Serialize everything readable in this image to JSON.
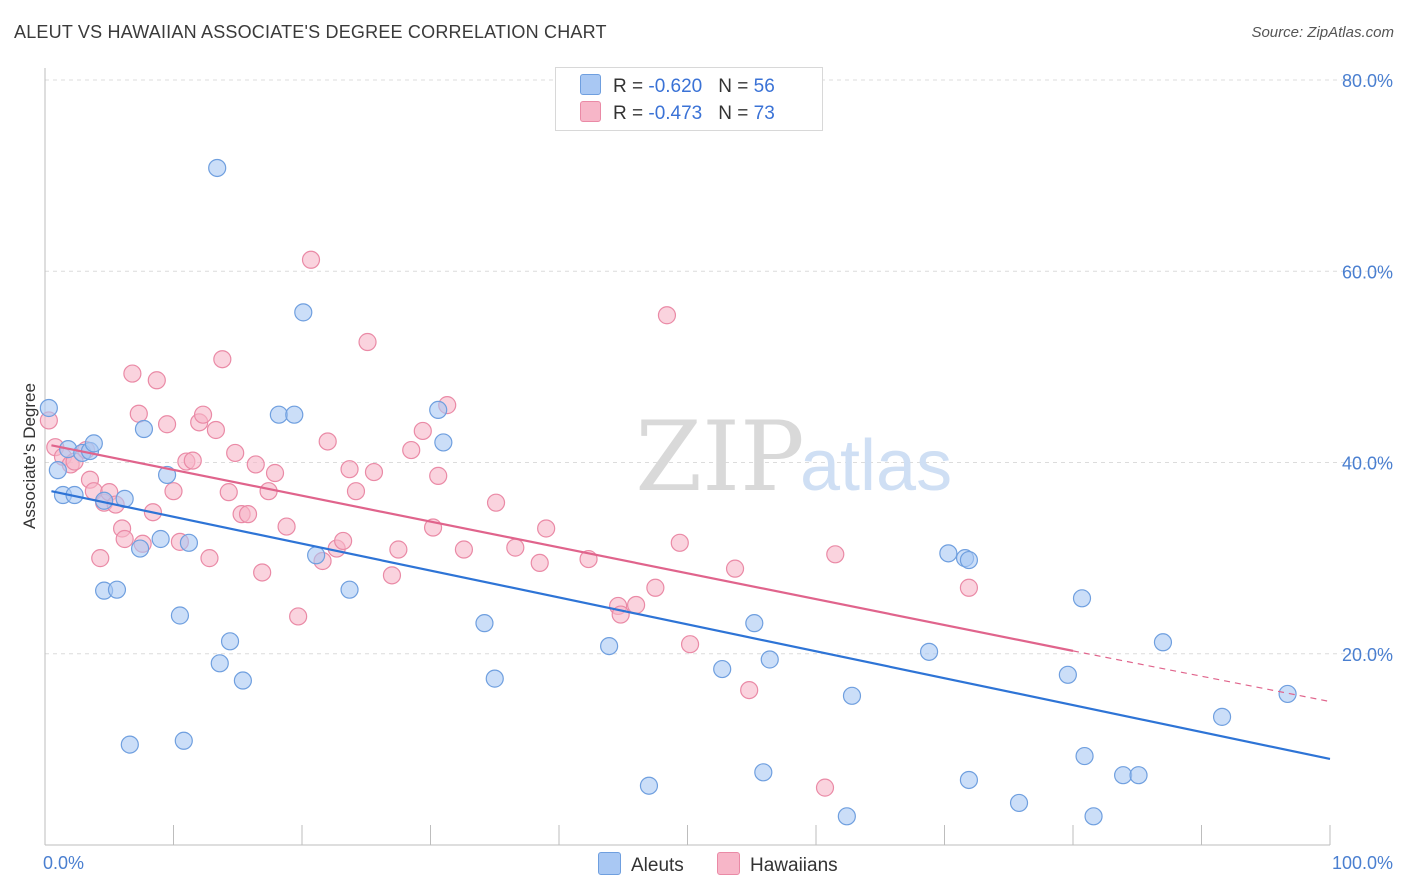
{
  "header": {
    "title": "ALEUT VS HAWAIIAN ASSOCIATE'S DEGREE CORRELATION CHART",
    "source": "Source: ZipAtlas.com"
  },
  "watermark": {
    "zip": "ZIP",
    "atlas": "atlas"
  },
  "legend": {
    "rows": [
      {
        "r_label": "R = ",
        "r_value": "-0.620",
        "n_label": "N = ",
        "n_value": "56",
        "color": "#a9c8f3"
      },
      {
        "r_label": "R = ",
        "r_value": "-0.473",
        "n_label": "N = ",
        "n_value": "73",
        "color": "#f7b6c8"
      }
    ]
  },
  "bottom_legend": {
    "aleuts": "Aleuts",
    "hawaiians": "Hawaiians"
  },
  "colors": {
    "aleut_fill": "#a9c8f3",
    "aleut_stroke": "#6f9fdf",
    "aleut_line": "#2e74d6",
    "hawaiian_fill": "#f7b6c8",
    "hawaiian_stroke": "#ea8aa6",
    "hawaiian_line": "#e0648c",
    "tick": "#4a7fd0",
    "grid": "#dcdcdc"
  },
  "chart_data": {
    "type": "scatter",
    "title": "ALEUT VS HAWAIIAN ASSOCIATE'S DEGREE CORRELATION CHART",
    "ylabel": "Associate's Degree",
    "xlabel": "",
    "xlim": [
      0,
      100
    ],
    "ylim": [
      0,
      80
    ],
    "x_ticks": [
      "0.0%",
      "100.0%"
    ],
    "y_ticks": [
      "20.0%",
      "40.0%",
      "60.0%",
      "80.0%"
    ],
    "y_tick_values": [
      20,
      40,
      60,
      80
    ],
    "grid": true,
    "legend_position": "top-center",
    "series": [
      {
        "name": "Aleuts",
        "r": -0.62,
        "n": 56,
        "trend": {
          "x": [
            0.5,
            100
          ],
          "y": [
            37.0,
            9.0
          ]
        },
        "points": [
          [
            0.3,
            45.7
          ],
          [
            1.0,
            39.2
          ],
          [
            1.4,
            36.6
          ],
          [
            1.8,
            41.4
          ],
          [
            2.3,
            36.6
          ],
          [
            2.9,
            41.0
          ],
          [
            3.5,
            41.2
          ],
          [
            3.8,
            42.0
          ],
          [
            4.6,
            36.0
          ],
          [
            4.6,
            26.6
          ],
          [
            5.6,
            26.7
          ],
          [
            6.2,
            36.2
          ],
          [
            6.6,
            10.5
          ],
          [
            7.4,
            31.0
          ],
          [
            7.7,
            43.5
          ],
          [
            9.0,
            32.0
          ],
          [
            9.5,
            38.7
          ],
          [
            10.5,
            24.0
          ],
          [
            10.8,
            10.9
          ],
          [
            11.2,
            31.6
          ],
          [
            13.4,
            70.8
          ],
          [
            13.6,
            19.0
          ],
          [
            14.4,
            21.3
          ],
          [
            15.4,
            17.2
          ],
          [
            18.2,
            45.0
          ],
          [
            19.4,
            45.0
          ],
          [
            20.1,
            55.7
          ],
          [
            21.1,
            30.3
          ],
          [
            23.7,
            26.7
          ],
          [
            30.6,
            45.5
          ],
          [
            31.0,
            42.1
          ],
          [
            34.2,
            23.2
          ],
          [
            35.0,
            17.4
          ],
          [
            43.9,
            20.8
          ],
          [
            47.0,
            6.2
          ],
          [
            52.7,
            18.4
          ],
          [
            55.2,
            23.2
          ],
          [
            55.9,
            7.6
          ],
          [
            56.4,
            19.4
          ],
          [
            62.4,
            3.0
          ],
          [
            62.8,
            15.6
          ],
          [
            68.8,
            20.2
          ],
          [
            70.3,
            30.5
          ],
          [
            71.6,
            30.0
          ],
          [
            71.9,
            29.8
          ],
          [
            71.9,
            6.8
          ],
          [
            75.8,
            4.4
          ],
          [
            79.6,
            17.8
          ],
          [
            80.7,
            25.8
          ],
          [
            80.9,
            9.3
          ],
          [
            81.6,
            3.0
          ],
          [
            83.9,
            7.3
          ],
          [
            85.1,
            7.3
          ],
          [
            87.0,
            21.2
          ],
          [
            91.6,
            13.4
          ],
          [
            96.7,
            15.8
          ]
        ]
      },
      {
        "name": "Hawaiians",
        "r": -0.473,
        "n": 73,
        "trend": {
          "x": [
            0.5,
            80
          ],
          "y": [
            41.8,
            20.3
          ]
        },
        "trend_dashed": {
          "x": [
            80,
            100
          ],
          "y": [
            20.3,
            15.0
          ]
        },
        "points": [
          [
            0.3,
            44.4
          ],
          [
            0.8,
            41.6
          ],
          [
            1.4,
            40.6
          ],
          [
            2.0,
            39.8
          ],
          [
            2.3,
            40.1
          ],
          [
            3.2,
            41.3
          ],
          [
            3.5,
            38.2
          ],
          [
            3.8,
            37.0
          ],
          [
            4.3,
            30.0
          ],
          [
            4.6,
            35.8
          ],
          [
            5.0,
            36.9
          ],
          [
            5.5,
            35.6
          ],
          [
            6.0,
            33.1
          ],
          [
            6.2,
            32.0
          ],
          [
            6.8,
            49.3
          ],
          [
            7.3,
            45.1
          ],
          [
            7.6,
            31.5
          ],
          [
            8.4,
            34.8
          ],
          [
            8.7,
            48.6
          ],
          [
            9.5,
            44.0
          ],
          [
            10.0,
            37.0
          ],
          [
            10.5,
            31.7
          ],
          [
            11.0,
            40.1
          ],
          [
            11.5,
            40.2
          ],
          [
            12.0,
            44.2
          ],
          [
            12.3,
            45.0
          ],
          [
            12.8,
            30.0
          ],
          [
            13.3,
            43.4
          ],
          [
            13.8,
            50.8
          ],
          [
            14.3,
            36.9
          ],
          [
            14.8,
            41.0
          ],
          [
            15.3,
            34.6
          ],
          [
            15.8,
            34.6
          ],
          [
            16.4,
            39.8
          ],
          [
            16.9,
            28.5
          ],
          [
            17.4,
            37.0
          ],
          [
            17.9,
            38.9
          ],
          [
            18.8,
            33.3
          ],
          [
            19.7,
            23.9
          ],
          [
            20.7,
            61.2
          ],
          [
            21.6,
            29.7
          ],
          [
            22.0,
            42.2
          ],
          [
            22.7,
            31.0
          ],
          [
            23.2,
            31.8
          ],
          [
            23.7,
            39.3
          ],
          [
            24.2,
            37.0
          ],
          [
            25.1,
            52.6
          ],
          [
            25.6,
            39.0
          ],
          [
            27.0,
            28.2
          ],
          [
            27.5,
            30.9
          ],
          [
            28.5,
            41.3
          ],
          [
            29.4,
            43.3
          ],
          [
            30.2,
            33.2
          ],
          [
            30.6,
            38.6
          ],
          [
            31.3,
            46.0
          ],
          [
            32.6,
            30.9
          ],
          [
            35.1,
            35.8
          ],
          [
            36.6,
            31.1
          ],
          [
            38.5,
            29.5
          ],
          [
            39.0,
            33.1
          ],
          [
            42.3,
            29.9
          ],
          [
            44.6,
            25.0
          ],
          [
            44.8,
            24.1
          ],
          [
            46.0,
            25.1
          ],
          [
            47.5,
            26.9
          ],
          [
            48.4,
            55.4
          ],
          [
            49.4,
            31.6
          ],
          [
            50.2,
            21.0
          ],
          [
            53.7,
            28.9
          ],
          [
            54.8,
            16.2
          ],
          [
            60.7,
            6.0
          ],
          [
            61.5,
            30.4
          ],
          [
            71.9,
            26.9
          ]
        ]
      }
    ]
  }
}
